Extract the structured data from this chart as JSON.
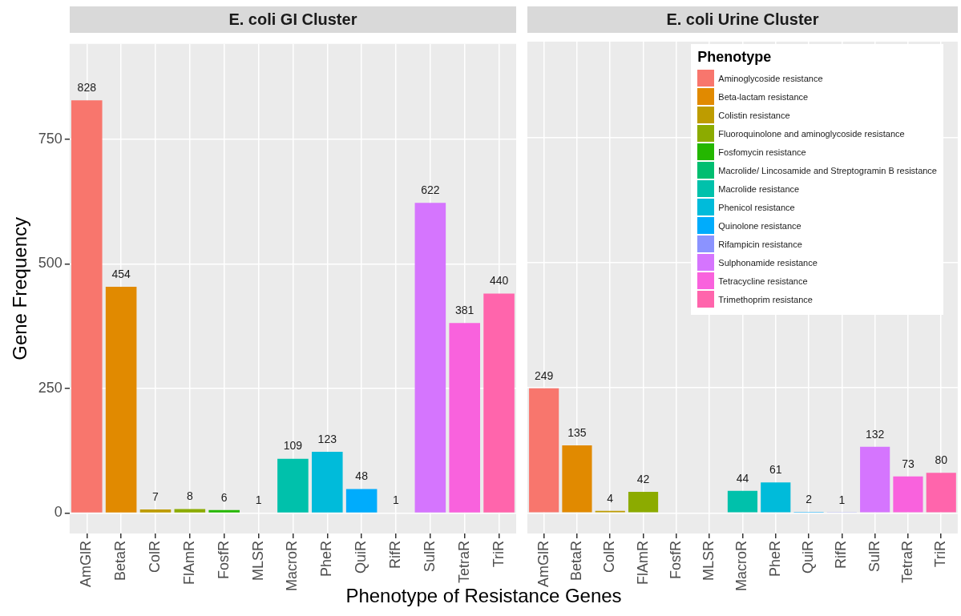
{
  "chart_data": [
    {
      "type": "bar",
      "title": "E. coli GI Cluster",
      "xlabel": "Phenotype of Resistance Genes",
      "ylabel": "Gene Frequency",
      "categories": [
        "AmGlR",
        "BetaR",
        "ColR",
        "FlAmR",
        "FosfR",
        "MLSR",
        "MacroR",
        "PheR",
        "QuiR",
        "RifR",
        "SulR",
        "TetraR",
        "TriR"
      ],
      "values": [
        828,
        454,
        7,
        8,
        6,
        1,
        109,
        123,
        48,
        1,
        622,
        381,
        440
      ],
      "colors": [
        "#f8766d",
        "#e18a00",
        "#be9c00",
        "#8cab00",
        "#24b700",
        "#00be70",
        "#00c1ab",
        "#00bbda",
        "#00acfc",
        "#8b93ff",
        "#d575fe",
        "#f962dd",
        "#ff65ac"
      ],
      "ylim": [
        -41,
        941
      ],
      "yticks": [
        0,
        250,
        500,
        750
      ],
      "grid": true,
      "data_labels": true
    },
    {
      "type": "bar",
      "title": "E. coli Urine Cluster",
      "legend_title": "Phenotype",
      "legend": "top right",
      "tick_labels": "x",
      "stacked": true,
      "categories": [
        "AmGlR",
        "BetaR",
        "ColR",
        "FlAmR",
        "FosfR",
        "MLSR",
        "MacroR",
        "PheR",
        "QuiR",
        "RifR",
        "SulR",
        "TetraR",
        "TriR"
      ],
      "series": [
        {
          "name": "Aminoglycoside resistance",
          "color": "#f8766d",
          "values": [
            249,
            null,
            null,
            null,
            null,
            null,
            null,
            null,
            null,
            null,
            null,
            null,
            null
          ]
        },
        {
          "name": "Beta-lactam resistance",
          "color": "#e18a00",
          "values": [
            null,
            135,
            null,
            null,
            null,
            null,
            null,
            null,
            null,
            null,
            null,
            null,
            null
          ]
        },
        {
          "name": "Colistin resistance",
          "color": "#be9c00",
          "values": [
            null,
            null,
            4,
            null,
            null,
            null,
            null,
            null,
            null,
            null,
            null,
            null,
            null
          ]
        },
        {
          "name": "Fluoroquinolone and aminoglycoside resistance",
          "color": "#8cab00",
          "values": [
            null,
            null,
            null,
            42,
            null,
            null,
            null,
            null,
            null,
            null,
            null,
            null,
            null
          ]
        },
        {
          "name": "Fosfomycin resistance",
          "color": "#24b700",
          "values": [
            null,
            null,
            null,
            null,
            null,
            null,
            null,
            null,
            null,
            null,
            null,
            null,
            null
          ]
        },
        {
          "name": "Macrolide/ Lincosamide and Streptogramin B resistance",
          "color": "#00be70",
          "values": [
            null,
            null,
            null,
            null,
            null,
            null,
            null,
            null,
            null,
            null,
            null,
            null,
            null
          ]
        },
        {
          "name": "Macrolide resistance",
          "color": "#00c1ab",
          "values": [
            null,
            null,
            null,
            null,
            null,
            null,
            44,
            null,
            null,
            null,
            null,
            null,
            null
          ]
        },
        {
          "name": "Phenicol resistance",
          "color": "#00bbda",
          "values": [
            null,
            null,
            null,
            null,
            null,
            null,
            null,
            61,
            null,
            null,
            null,
            null,
            null
          ]
        },
        {
          "name": "Quinolone resistance",
          "color": "#00acfc",
          "values": [
            null,
            null,
            null,
            null,
            null,
            null,
            null,
            null,
            2,
            null,
            null,
            null,
            null
          ]
        },
        {
          "name": "Rifampicin resistance",
          "color": "#8b93ff",
          "values": [
            null,
            null,
            null,
            null,
            null,
            null,
            null,
            null,
            null,
            1,
            null,
            null,
            null
          ]
        },
        {
          "name": "Sulphonamide resistance",
          "color": "#d575fe",
          "values": [
            null,
            null,
            null,
            null,
            null,
            null,
            null,
            null,
            null,
            null,
            132,
            null,
            null
          ]
        },
        {
          "name": "Tetracycline resistance",
          "color": "#f962dd",
          "values": [
            null,
            null,
            null,
            null,
            null,
            null,
            null,
            null,
            null,
            null,
            null,
            73,
            null
          ]
        },
        {
          "name": "Trimethoprim resistance",
          "color": "#ff65ac",
          "values": [
            null,
            null,
            null,
            null,
            null,
            null,
            null,
            null,
            null,
            null,
            null,
            null,
            80
          ]
        }
      ],
      "ylim": [
        -41,
        941
      ],
      "yticks": [
        0,
        250,
        500,
        750
      ],
      "grid": true,
      "data_labels": true
    }
  ]
}
